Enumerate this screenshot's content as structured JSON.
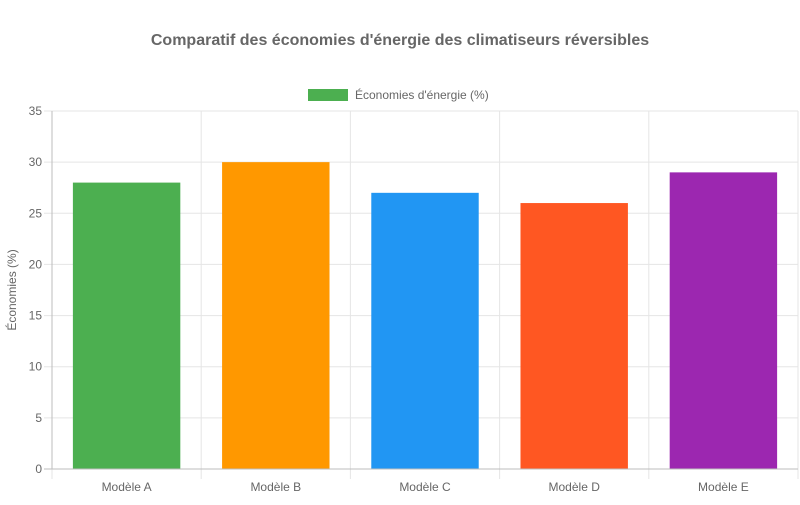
{
  "chart_data": {
    "type": "bar",
    "title": "Comparatif des économies d'énergie des climatiseurs réversibles",
    "xlabel": "",
    "ylabel": "Économies (%)",
    "categories": [
      "Modèle A",
      "Modèle B",
      "Modèle C",
      "Modèle D",
      "Modèle E"
    ],
    "series": [
      {
        "name": "Économies d'énergie (%)",
        "values": [
          28,
          30,
          27,
          26,
          29
        ],
        "colors": [
          "#4CAF50",
          "#FF9800",
          "#2196F3",
          "#FF5722",
          "#9C27B0"
        ]
      }
    ],
    "ylim": [
      0,
      35
    ],
    "yticks": [
      "0",
      "5",
      "10",
      "15",
      "20",
      "25",
      "30",
      "35"
    ],
    "legend_position": "top",
    "legend_color": "#4CAF50",
    "grid": true
  }
}
